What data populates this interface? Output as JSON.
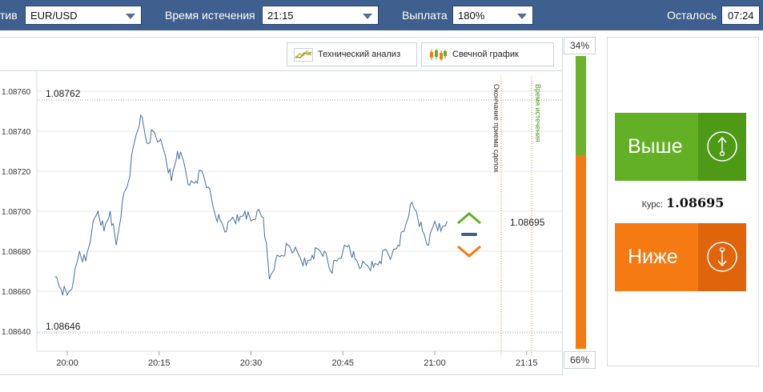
{
  "topbar": {
    "asset_label": "тив",
    "asset_value": "EUR/USD",
    "expiry_label": "Время истечения",
    "expiry_value": "21:15",
    "payout_label": "Выплата",
    "payout_value": "180%",
    "remaining_label": "Осталось",
    "remaining_value": "07:24"
  },
  "toolbar": {
    "tech_label": "Технический анализ",
    "candle_label": "Свечной график"
  },
  "sentiment": {
    "up_pct": "34%",
    "down_pct": "66%",
    "up_fraction": 0.34
  },
  "trade": {
    "up_label": "Выше",
    "down_label": "Ниже",
    "rate_label": "Курс:",
    "rate_value": "1.08695"
  },
  "colors": {
    "header": "#3f5f8e",
    "up": "#63b026",
    "down": "#f57a12",
    "line": "#4a6d9c"
  },
  "chart_data": {
    "type": "line",
    "y_ticks": [
      "1.08640",
      "1.08660",
      "1.08680",
      "1.08700",
      "1.08720",
      "1.08740",
      "1.08760"
    ],
    "x_ticks": [
      "20:00",
      "20:15",
      "20:30",
      "20:45",
      "21:00",
      "21:15"
    ],
    "ylim": [
      1.0863,
      1.0877
    ],
    "high_label": "1.08762",
    "low_label": "1.08646",
    "current_label": "1.08695",
    "vline_deal_end": "Окончание приема сделок",
    "vline_expiry": "Время истечения",
    "series": [
      {
        "x": [
          "19:58",
          "19:59",
          "20:00",
          "20:01",
          "20:02",
          "20:03",
          "20:04",
          "20:05",
          "20:06",
          "20:07",
          "20:08",
          "20:09",
          "20:10",
          "20:11",
          "20:12",
          "20:13",
          "20:14",
          "20:15",
          "20:16",
          "20:17",
          "20:18",
          "20:19",
          "20:20",
          "20:21",
          "20:22",
          "20:23",
          "20:24",
          "20:25",
          "20:26",
          "20:27",
          "20:28",
          "20:29",
          "20:30",
          "20:31",
          "20:32",
          "20:33",
          "20:34",
          "20:35",
          "20:36",
          "20:37",
          "20:38",
          "20:39",
          "20:40",
          "20:41",
          "20:42",
          "20:43",
          "20:44",
          "20:45",
          "20:46",
          "20:47",
          "20:48",
          "20:49",
          "20:50",
          "20:51",
          "20:52",
          "20:53",
          "20:54",
          "20:55",
          "20:56",
          "20:57",
          "20:58",
          "20:59",
          "21:00",
          "21:01",
          "21:02"
        ],
        "values": [
          1.08667,
          1.08661,
          1.08658,
          1.08665,
          1.0868,
          1.08675,
          1.0869,
          1.087,
          1.0869,
          1.087,
          1.08683,
          1.08705,
          1.08715,
          1.08735,
          1.08748,
          1.08734,
          1.0874,
          1.08735,
          1.08728,
          1.08715,
          1.0873,
          1.08725,
          1.08713,
          1.08715,
          1.0872,
          1.08712,
          1.087,
          1.08695,
          1.0869,
          1.08697,
          1.08695,
          1.087,
          1.08695,
          1.087,
          1.08697,
          1.08666,
          1.08675,
          1.08678,
          1.08683,
          1.0868,
          1.08677,
          1.08673,
          1.08678,
          1.08681,
          1.0868,
          1.0867,
          1.08675,
          1.0868,
          1.08683,
          1.08676,
          1.08672,
          1.08673,
          1.08672,
          1.08675,
          1.08681,
          1.08678,
          1.08683,
          1.0869,
          1.08703,
          1.087,
          1.0869,
          1.08683,
          1.08695,
          1.0869,
          1.08695
        ]
      }
    ]
  }
}
